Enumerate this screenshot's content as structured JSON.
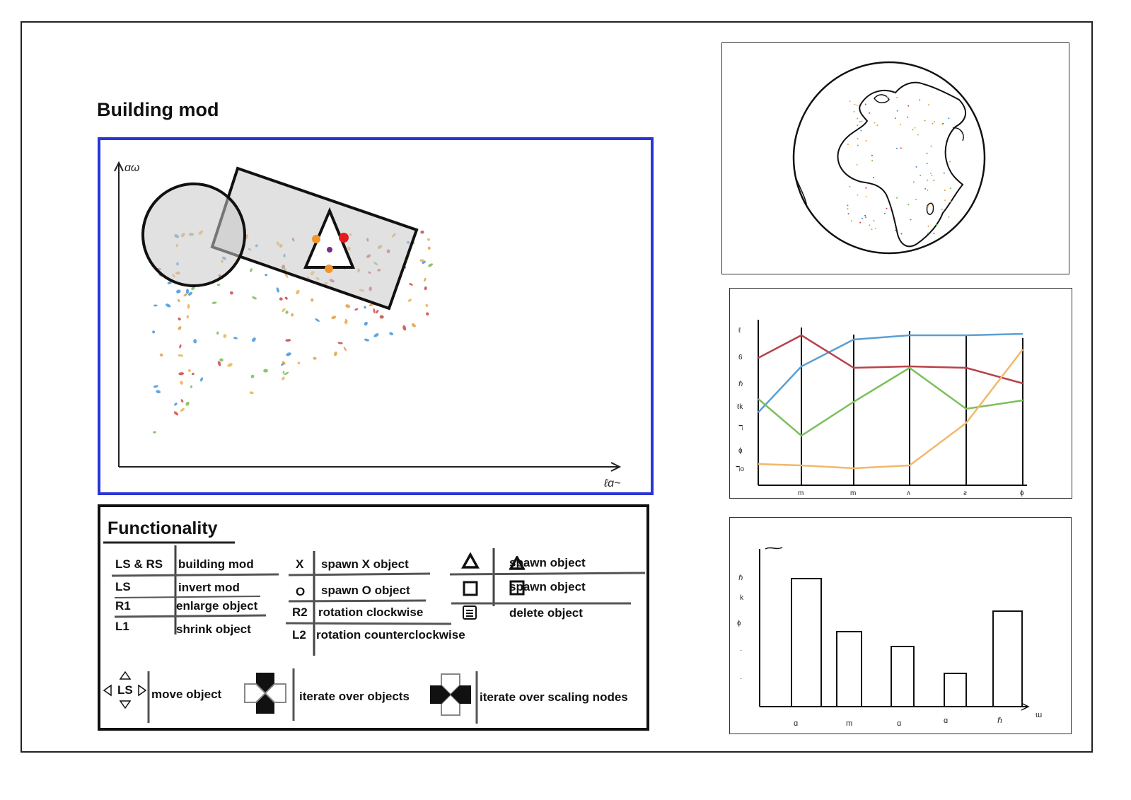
{
  "page": {
    "title": "Building mod"
  },
  "canvas": {
    "border_color": "#2a35d6",
    "y_axis_label": "ɑω",
    "x_axis_label": "ℓɑ~",
    "shapes": [
      "circle-selection",
      "rectangle-selection",
      "triangle-object"
    ]
  },
  "functionality": {
    "title": "Functionality",
    "rows_left": [
      {
        "key": "LS & RS",
        "action": "building mod"
      },
      {
        "key": "LS",
        "action": "invert mod"
      },
      {
        "key": "R1",
        "action": "enlarge object"
      },
      {
        "key": "L1",
        "action": "shrink object"
      }
    ],
    "rows_middle": [
      {
        "key": "X",
        "action": "spawn X object"
      },
      {
        "key": "O",
        "action": "spawn O object"
      },
      {
        "key": "R2",
        "action": "rotation clockwise"
      },
      {
        "key": "L2",
        "action": "rotation counterclockwise"
      }
    ],
    "rows_right": [
      {
        "icon": "triangle-icon",
        "action_prefix": "spawn",
        "action_icon": "triangle-icon",
        "action_suffix": "object"
      },
      {
        "icon": "square-icon",
        "action_prefix": "spawn",
        "action_icon": "square-icon",
        "action_suffix": "object"
      },
      {
        "icon": "options-icon",
        "action": "delete object"
      }
    ],
    "bottom": [
      {
        "icon": "left-stick-icon",
        "stick_label": "LS",
        "action": "move object"
      },
      {
        "icon": "dpad-icon",
        "action": "iterate over objects"
      },
      {
        "icon": "dpad-inverted-icon",
        "action": "iterate over scaling nodes"
      }
    ]
  },
  "panels": {
    "globe": {
      "name": "world-map-globe"
    },
    "line_chart": {
      "y_ticks": [
        "ℓ",
        "6",
        "ℏ",
        "ℓk",
        "ℸ",
        "ɸ",
        "ℸo"
      ],
      "x_ticks": [
        "m",
        "m",
        "ʌ",
        "ƨ",
        "ɸ"
      ]
    },
    "bar_chart": {
      "y_ticks": [
        "ℏ",
        "k",
        "ɸ",
        "·",
        "·"
      ],
      "x_ticks": [
        "ɑ",
        "m",
        "ɑ",
        "ɑ",
        "ℏ"
      ],
      "x_axis_label": "ɯ"
    }
  }
}
